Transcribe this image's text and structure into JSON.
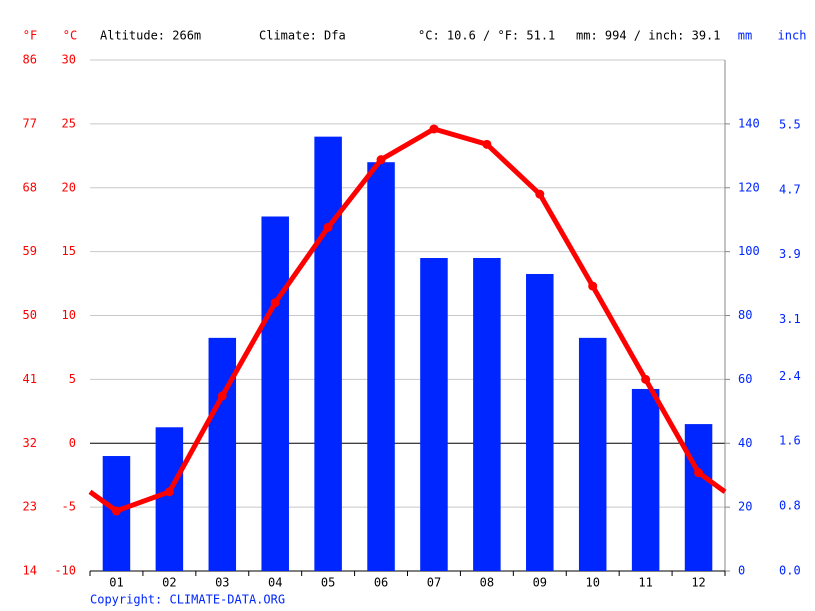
{
  "chart_data": {
    "type": "climate",
    "altitude": "Altitude: 266m",
    "climate": "Climate: Dfa",
    "summary_c_f": "°C: 10.6 / °F: 51.1",
    "summary_mm_inch": "mm: 994 / inch: 39.1",
    "unit_labels": {
      "f": "°F",
      "c": "°C",
      "mm": "mm",
      "inch": "inch"
    },
    "credit": "Copyright: CLIMATE-DATA.ORG",
    "categories": [
      "01",
      "02",
      "03",
      "04",
      "05",
      "06",
      "07",
      "08",
      "09",
      "10",
      "11",
      "12"
    ],
    "temperature": {
      "color": "#ff0000",
      "axis": "y",
      "values": [
        -5.3,
        -3.8,
        3.7,
        11.0,
        16.9,
        22.2,
        24.6,
        23.4,
        19.5,
        12.3,
        5.0,
        -2.3
      ]
    },
    "precipitation": {
      "color": "#0026ff",
      "axis": "y2",
      "values": [
        36,
        45,
        73,
        111,
        136,
        128,
        98,
        98,
        93,
        73,
        57,
        46
      ]
    },
    "ylim": [
      -10,
      30
    ],
    "yticks": [
      -10,
      -5,
      0,
      5,
      10,
      15,
      20,
      25,
      30
    ],
    "ylim_f": [
      14,
      86
    ],
    "yticks_f": [
      14,
      23,
      32,
      41,
      50,
      59,
      68,
      77,
      86
    ],
    "y2lim": [
      0,
      160
    ],
    "y2ticks": [
      0,
      20,
      40,
      60,
      80,
      100,
      120,
      140
    ],
    "ylim_inch": [
      0,
      6.3
    ],
    "yticks_inch": [
      {
        "value": 0,
        "label": "0.0"
      },
      0.8,
      1.6,
      2.4,
      3.1,
      3.9,
      4.7,
      5.5
    ],
    "grid": true
  }
}
